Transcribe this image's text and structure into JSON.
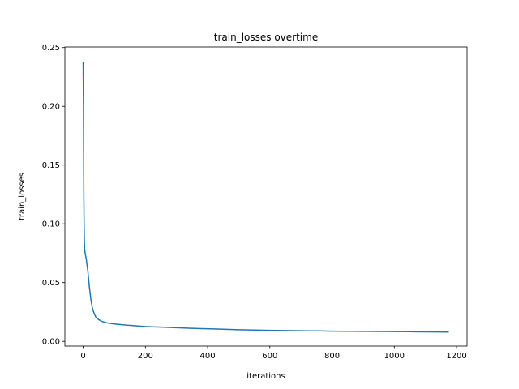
{
  "chart_data": {
    "type": "line",
    "title": "train_losses overtime",
    "x_label": "iterations",
    "y_label": "train_losses",
    "x": [
      0,
      1,
      2,
      3,
      4,
      5,
      7,
      10,
      13,
      15,
      18,
      20,
      23,
      25,
      28,
      30,
      35,
      40,
      45,
      50,
      60,
      70,
      80,
      90,
      100,
      120,
      140,
      160,
      180,
      200,
      230,
      260,
      300,
      340,
      380,
      420,
      460,
      500,
      550,
      600,
      650,
      700,
      750,
      800,
      850,
      900,
      950,
      1000,
      1050,
      1100,
      1150,
      1175
    ],
    "series": [
      {
        "name": "train_losses",
        "color": "#1f77b4",
        "values": [
          0.238,
          0.2,
          0.13,
          0.1,
          0.085,
          0.078,
          0.074,
          0.07,
          0.064,
          0.06,
          0.052,
          0.046,
          0.04,
          0.035,
          0.031,
          0.028,
          0.024,
          0.021,
          0.0195,
          0.0185,
          0.017,
          0.0162,
          0.0156,
          0.0152,
          0.0148,
          0.0143,
          0.0138,
          0.0134,
          0.013,
          0.0126,
          0.0123,
          0.012,
          0.0116,
          0.0112,
          0.0108,
          0.0106,
          0.0102,
          0.0099,
          0.0096,
          0.0094,
          0.0092,
          0.009,
          0.0089,
          0.0087,
          0.0086,
          0.0085,
          0.0084,
          0.0083,
          0.0082,
          0.0081,
          0.008,
          0.0079
        ]
      }
    ],
    "xlim": [
      -58.75,
      1233.75
    ],
    "xticks": [
      0,
      200,
      400,
      600,
      800,
      1000,
      1200
    ],
    "ylim": [
      -0.004,
      0.2505
    ],
    "yticks": [
      {
        "value": 0,
        "label": "0.00"
      },
      {
        "value": 0.05,
        "label": "0.05"
      },
      {
        "value": 0.1,
        "label": "0.10"
      },
      {
        "value": 0.15,
        "label": "0.15"
      },
      {
        "value": 0.2,
        "label": "0.20"
      },
      {
        "value": 0.25,
        "label": "0.25"
      }
    ]
  }
}
